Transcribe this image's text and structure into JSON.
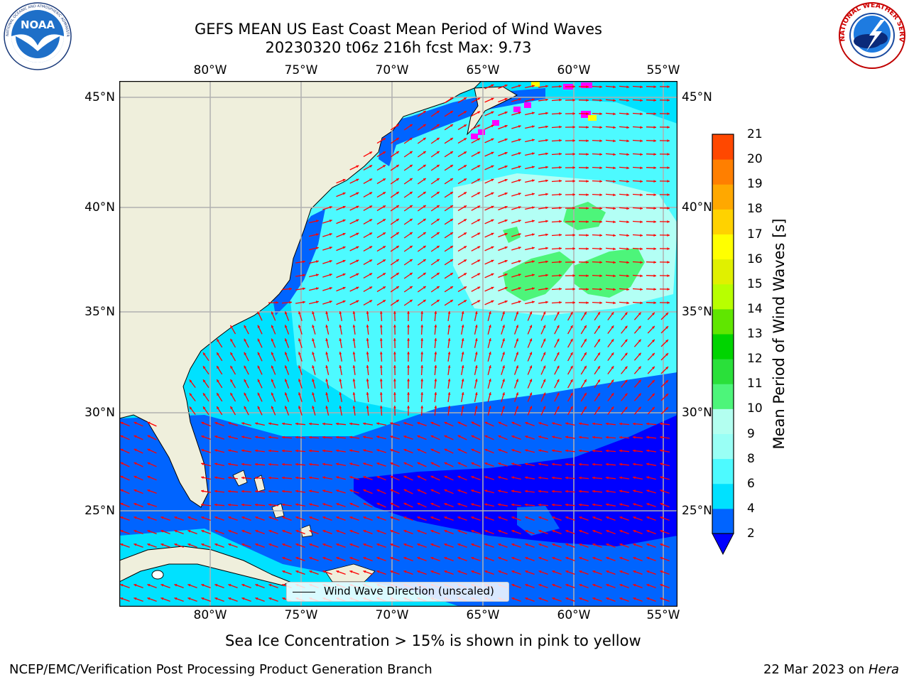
{
  "title_line1": "GEFS MEAN US East Coast Mean Period of Wind Waves",
  "title_line2": "20230320 t06z 216h fcst   Max: 9.73",
  "noaa_logo_text": "NOAA",
  "noaa_ring_text": "NATIONAL OCEANIC AND ATMOSPHERIC ADMINISTRATION · U.S. DEPARTMENT OF COMMERCE",
  "nws_ring_text": "NATIONAL WEATHER SERVICE",
  "lon_labels": [
    "80°W",
    "75°W",
    "70°W",
    "65°W",
    "60°W",
    "55°W"
  ],
  "lat_labels": [
    "45°N",
    "40°N",
    "35°N",
    "30°N",
    "25°N"
  ],
  "legend_label": "Wind Wave Direction (unscaled)",
  "colorbar": {
    "label": "Mean Period of Wind Waves [s]",
    "ticks": [
      "2",
      "4",
      "6",
      "8",
      "9",
      "10",
      "11",
      "12",
      "13",
      "14",
      "15",
      "16",
      "17",
      "18",
      "19",
      "20",
      "21"
    ],
    "colors": [
      "#0064ff",
      "#00e1ff",
      "#4dfaff",
      "#99fff5",
      "#b3fff0",
      "#4df57a",
      "#2ae03a",
      "#00d400",
      "#60e600",
      "#b8ff00",
      "#e0f000",
      "#ffff00",
      "#ffd200",
      "#ffa800",
      "#ff7f00",
      "#ff4800",
      "#ff1e00",
      "#ff0000"
    ],
    "under_color": "#0000ff"
  },
  "colors": {
    "land": "#efefdc",
    "deep_blue": "#0000ff",
    "blue": "#0064ff",
    "cyan": "#00e1ff",
    "light_cyan": "#4dfaff",
    "pale_cyan": "#b3fff5",
    "green": "#4df57a",
    "arrow": "#ff0000",
    "ice_pink": "#ff00ff",
    "ice_yellow": "#ffff00",
    "grid": "#b0b0b0"
  },
  "sea_ice_note": "Sea Ice Concentration > 15% is shown in pink to yellow",
  "footer_left": "NCEP/EMC/Verification Post Processing Product Generation Branch",
  "footer_date": "22 Mar 2023 on ",
  "footer_host": "Hera"
}
